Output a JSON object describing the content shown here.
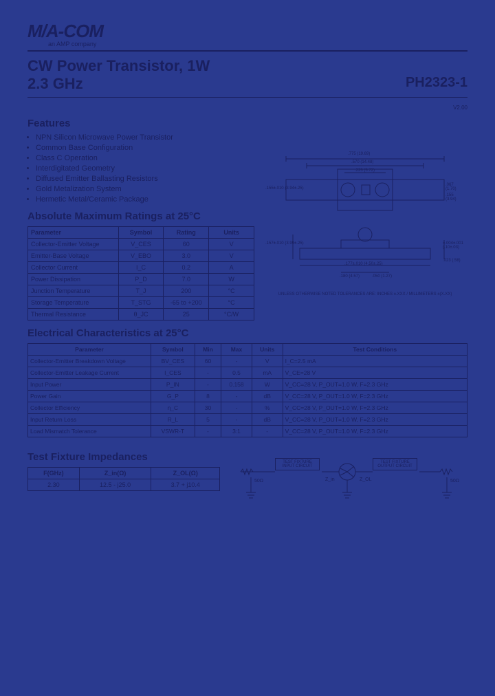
{
  "logo": {
    "brand": "M/A-COM",
    "tagline": "an AMP company"
  },
  "title": {
    "line1": "CW Power Transistor, 1W",
    "line2": "2.3 GHz"
  },
  "part_number": "PH2323-1",
  "version": "V2.00",
  "features": {
    "heading": "Features",
    "items": [
      "NPN Silicon Microwave Power Transistor",
      "Common Base Configuration",
      "Class C Operation",
      "Interdigitated Geometry",
      "Diffused Emitter Ballasting Resistors",
      "Gold Metalization System",
      "Hermetic Metal/Ceramic Package"
    ]
  },
  "amr": {
    "heading": "Absolute Maximum Ratings at 25°C",
    "columns": [
      "Parameter",
      "Symbol",
      "Rating",
      "Units"
    ],
    "rows": [
      [
        "Collector-Emitter Voltage",
        "V_CES",
        "60",
        "V"
      ],
      [
        "Emitter-Base Voltage",
        "V_EBO",
        "3.0",
        "V"
      ],
      [
        "Collector Current",
        "I_C",
        "0.2",
        "A"
      ],
      [
        "Power Dissipation",
        "P_D",
        "7.0",
        "W"
      ],
      [
        "Junction Temperature",
        "T_J",
        "200",
        "°C"
      ],
      [
        "Storage Temperature",
        "T_STG",
        "-65 to +200",
        "°C"
      ],
      [
        "Thermal Resistance",
        "θ_JC",
        "25",
        "°C/W"
      ]
    ]
  },
  "ec": {
    "heading": "Electrical Characteristics at 25°C",
    "columns": [
      "Parameter",
      "Symbol",
      "Min",
      "Max",
      "Units",
      "Test Conditions"
    ],
    "rows": [
      [
        "Collector-Emitter Breakdown Voltage",
        "BV_CES",
        "60",
        "-",
        "V",
        "I_C=2.5 mA"
      ],
      [
        "Collector-Emitter Leakage Current",
        "I_CES",
        "-",
        "0.5",
        "mA",
        "V_CE=28 V"
      ],
      [
        "Input Power",
        "P_IN",
        "-",
        "0.158",
        "W",
        "V_CC=28 V, P_OUT=1.0 W, F=2.3 GHz"
      ],
      [
        "Power Gain",
        "G_P",
        "8",
        "-",
        "dB",
        "V_CC=28 V, P_OUT=1.0 W, F=2.3 GHz"
      ],
      [
        "Collector Efficiency",
        "η_C",
        "30",
        "-",
        "%",
        "V_CC=28 V, P_OUT=1.0 W, F=2.3 GHz"
      ],
      [
        "Input Return Loss",
        "R_L",
        "5",
        "-",
        "dB",
        "V_CC=28 V, P_OUT=1.0 W, F=2.3 GHz"
      ],
      [
        "Load Mismatch Tolerance",
        "VSWR-T",
        "-",
        "3:1",
        "-",
        "V_CC=28 V, P_OUT=1.0 W, F=2.3 GHz"
      ]
    ]
  },
  "tf": {
    "heading": "Test Fixture Impedances",
    "columns": [
      "F(GHz)",
      "Z_in(Ω)",
      "Z_OL(Ω)"
    ],
    "rows": [
      [
        "2.30",
        "12.5 - j25.0",
        "3.7 + j10.4"
      ]
    ]
  },
  "package_diagram": {
    "caption": "UNLESS OTHERWISE NOTED TOLERANCES ARE: INCHES ±.XXX / MILLIMETERS ±(X.XX)",
    "dims": {
      "w1": ".775 (19.69)",
      "w2": ".570 (14.48)",
      "d1": ".225 (5.72)",
      "l1": ".180 (4.57)",
      "t1": ".155±.010 (3.94±.25)",
      "h1": ".067 (1.70)",
      "h2": ".155 (3.94)",
      "b1": "±.004±.001 (.10±.03)",
      "s1": ".157±.010 (3.99±.25)",
      "s2": ".177±.010 (4.50±.25)",
      "p1": ".180 (4.57)",
      "p2": ".050 (1.27)",
      "f1": ".023 (.58)"
    }
  },
  "circuit": {
    "box_in": "TEST FIXTURE INPUT CIRCUIT",
    "box_out": "TEST FIXTURE OUTPUT CIRCUIT",
    "r_label": "50Ω",
    "z_in": "Z_in",
    "z_ol": "Z_OL"
  },
  "styling": {
    "page_bg": "#2a3a8f",
    "ink": "#1a2060",
    "font": "Arial",
    "title_fontsize": 22,
    "section_fontsize": 15,
    "body_fontsize": 11,
    "table_fontsize": 9
  }
}
